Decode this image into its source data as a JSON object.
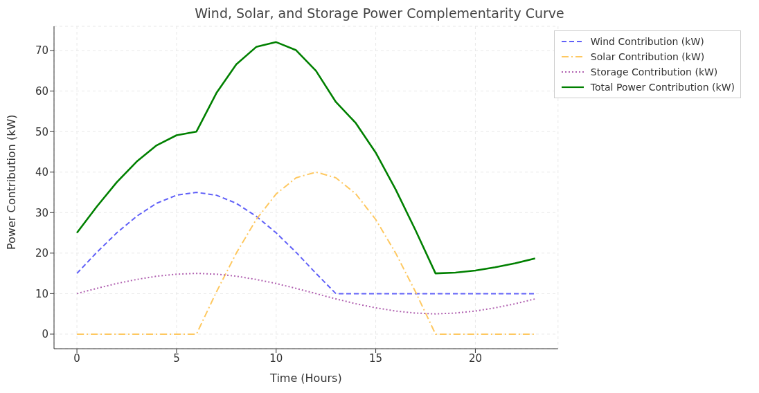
{
  "chart_data": {
    "type": "line",
    "title": "Wind, Solar, and Storage Power Complementarity Curve",
    "xlabel": "Time (Hours)",
    "ylabel": "Power Contribution (kW)",
    "x": [
      0,
      1,
      2,
      3,
      4,
      5,
      6,
      7,
      8,
      9,
      10,
      11,
      12,
      13,
      14,
      15,
      16,
      17,
      18,
      19,
      20,
      21,
      22,
      23
    ],
    "series": [
      {
        "name": "Wind Contribution (kW)",
        "color": "#6060f8",
        "line_style": "dashed",
        "values": [
          15,
          20.2,
          25,
          29.1,
          32.3,
          34.3,
          35,
          34.3,
          32.3,
          29.1,
          25,
          20.2,
          15,
          10,
          10,
          10,
          10,
          10,
          10,
          10,
          10,
          10,
          10,
          10
        ]
      },
      {
        "name": "Solar Contribution (kW)",
        "color": "#fec860",
        "line_style": "dashdot",
        "values": [
          0,
          0,
          0,
          0,
          0,
          0,
          0,
          10.4,
          20,
          28.3,
          34.6,
          38.6,
          40,
          38.6,
          34.6,
          28.3,
          20,
          10.4,
          0,
          0,
          0,
          0,
          0,
          0
        ]
      },
      {
        "name": "Storage Contribution (kW)",
        "color": "#b060b0",
        "line_style": "dotted",
        "values": [
          10,
          11.3,
          12.5,
          13.5,
          14.3,
          14.8,
          15,
          14.8,
          14.3,
          13.5,
          12.5,
          11.3,
          10,
          8.7,
          7.5,
          6.5,
          5.7,
          5.2,
          5,
          5.2,
          5.7,
          6.5,
          7.5,
          8.7
        ]
      },
      {
        "name": "Total Power Contribution (kW)",
        "color": "#008000",
        "line_style": "solid",
        "values": [
          25,
          31.5,
          37.5,
          42.6,
          46.6,
          49.1,
          50,
          59.5,
          66.6,
          70.9,
          72.1,
          70.1,
          65,
          57.3,
          52.1,
          44.8,
          35.7,
          25.6,
          15,
          15.2,
          15.7,
          16.5,
          17.5,
          18.7
        ]
      }
    ],
    "xlim": [
      -1.15,
      24.15
    ],
    "xticks": [
      0,
      5,
      10,
      15,
      20
    ],
    "ylim": [
      -3.6,
      76
    ],
    "yticks": [
      0,
      10,
      20,
      30,
      40,
      50,
      60,
      70
    ],
    "grid": true,
    "legend": "top right",
    "marker": "none"
  }
}
